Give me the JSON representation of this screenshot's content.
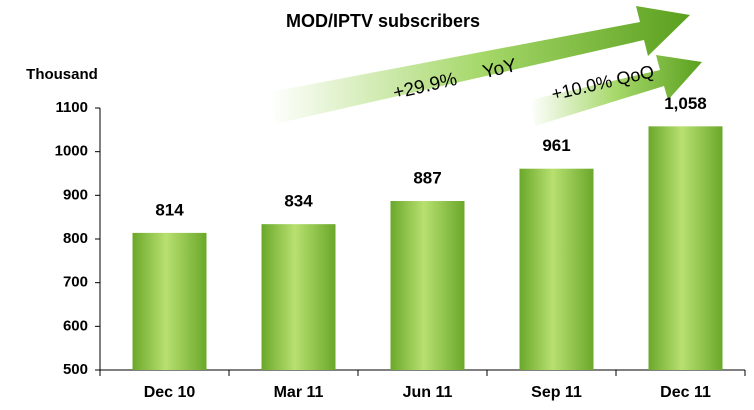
{
  "chart_data": {
    "type": "bar",
    "title": "MOD/IPTV subscribers",
    "y_axis_label": "Thousand",
    "categories": [
      "Dec 10",
      "Mar 11",
      "Jun 11",
      "Sep 11",
      "Dec 11"
    ],
    "values": [
      814,
      834,
      887,
      961,
      1058
    ],
    "value_labels": [
      "814",
      "834",
      "887",
      "961",
      "1,058"
    ],
    "color": "#7dbb33",
    "ylim": [
      500,
      1100
    ],
    "yticks": [
      500,
      600,
      700,
      800,
      900,
      1000,
      1100
    ],
    "grid": false,
    "annotations": [
      "+29.9% YoY",
      "+10.0% QoQ"
    ]
  }
}
